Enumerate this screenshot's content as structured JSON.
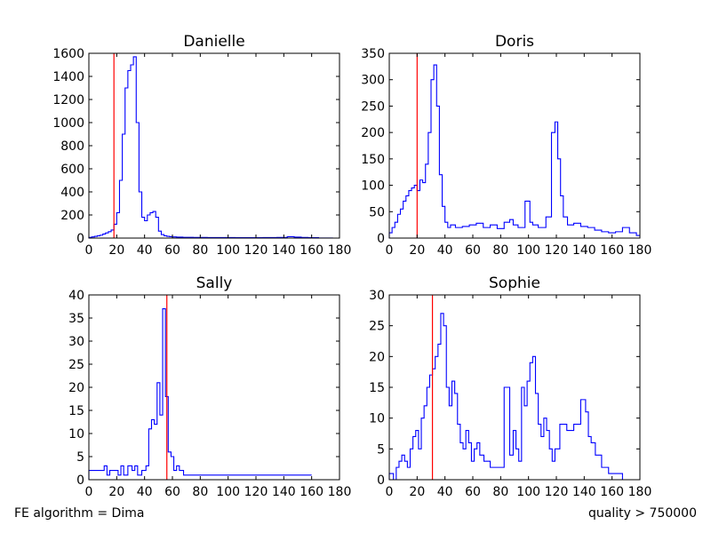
{
  "footer": {
    "left": "FE algorithm = Dima",
    "right": "quality > 750000"
  },
  "colors": {
    "series": "#0000ff",
    "marker": "#ff0000",
    "axes": "#000000"
  },
  "chart_data": [
    {
      "type": "histogram",
      "title": "Danielle",
      "xlim": [
        0,
        180
      ],
      "ylim": [
        0,
        1600
      ],
      "xticks": [
        0,
        20,
        40,
        60,
        80,
        100,
        120,
        140,
        160,
        180
      ],
      "yticks": [
        0,
        200,
        400,
        600,
        800,
        1000,
        1200,
        1400,
        1600
      ],
      "marker_line_x": 18,
      "series": [
        {
          "x": [
            1,
            3,
            5,
            7,
            9,
            11,
            13,
            15,
            17,
            19,
            21,
            23,
            25,
            27,
            29,
            31,
            33,
            35,
            37,
            39,
            41,
            43,
            45,
            47,
            49,
            51,
            53,
            55,
            57,
            59,
            61,
            65,
            70,
            80,
            90,
            100,
            110,
            120,
            130,
            140,
            145,
            150,
            155,
            160,
            170,
            180
          ],
          "y": [
            5,
            10,
            15,
            20,
            25,
            35,
            45,
            55,
            70,
            120,
            220,
            500,
            900,
            1300,
            1450,
            1500,
            1570,
            1000,
            400,
            180,
            150,
            200,
            220,
            230,
            180,
            60,
            30,
            20,
            15,
            12,
            10,
            8,
            6,
            5,
            4,
            4,
            3,
            3,
            4,
            5,
            12,
            8,
            5,
            3,
            1,
            0
          ]
        }
      ]
    },
    {
      "type": "histogram",
      "title": "Doris",
      "xlim": [
        0,
        180
      ],
      "ylim": [
        0,
        350
      ],
      "xticks": [
        0,
        20,
        40,
        60,
        80,
        100,
        120,
        140,
        160,
        180
      ],
      "yticks": [
        0,
        50,
        100,
        150,
        200,
        250,
        300,
        350
      ],
      "marker_line_x": 20,
      "series": [
        {
          "x": [
            1,
            3,
            5,
            7,
            9,
            11,
            13,
            15,
            17,
            19,
            21,
            23,
            25,
            27,
            29,
            31,
            33,
            35,
            37,
            39,
            41,
            43,
            45,
            50,
            55,
            60,
            65,
            70,
            75,
            80,
            85,
            88,
            90,
            95,
            100,
            102,
            104,
            110,
            115,
            118,
            120,
            122,
            124,
            126,
            130,
            135,
            140,
            145,
            150,
            155,
            160,
            165,
            170,
            175,
            180
          ],
          "y": [
            10,
            20,
            30,
            45,
            55,
            70,
            80,
            90,
            95,
            100,
            90,
            110,
            105,
            140,
            200,
            300,
            328,
            250,
            120,
            60,
            30,
            20,
            25,
            20,
            22,
            25,
            28,
            20,
            25,
            18,
            30,
            35,
            25,
            20,
            70,
            30,
            25,
            20,
            40,
            200,
            220,
            150,
            80,
            40,
            25,
            28,
            22,
            20,
            15,
            12,
            10,
            12,
            20,
            10,
            5
          ]
        }
      ]
    },
    {
      "type": "histogram",
      "title": "Sally",
      "xlim": [
        0,
        180
      ],
      "ylim": [
        0,
        40
      ],
      "xticks": [
        0,
        20,
        40,
        60,
        80,
        100,
        120,
        140,
        160,
        180
      ],
      "yticks": [
        0,
        5,
        10,
        15,
        20,
        25,
        30,
        35,
        40
      ],
      "marker_line_x": 56,
      "series": [
        {
          "x": [
            10,
            12,
            14,
            16,
            20,
            22,
            24,
            26,
            30,
            32,
            34,
            36,
            40,
            42,
            44,
            46,
            48,
            50,
            52,
            54,
            56,
            58,
            60,
            62,
            64,
            66,
            70,
            72,
            80,
            90,
            108,
            150,
            155,
            160
          ],
          "y": [
            2,
            3,
            1,
            2,
            2,
            1,
            3,
            1,
            3,
            2,
            3,
            1,
            2,
            3,
            11,
            13,
            12,
            21,
            14,
            37,
            18,
            6,
            5,
            2,
            3,
            2,
            1,
            1,
            1,
            1,
            1,
            1,
            1,
            1
          ]
        }
      ]
    },
    {
      "type": "histogram",
      "title": "Sophie",
      "xlim": [
        0,
        180
      ],
      "ylim": [
        0,
        30
      ],
      "xticks": [
        0,
        20,
        40,
        60,
        80,
        100,
        120,
        140,
        160,
        180
      ],
      "yticks": [
        0,
        5,
        10,
        15,
        20,
        25,
        30
      ],
      "marker_line_x": 31,
      "series": [
        {
          "x": [
            2,
            4,
            6,
            8,
            10,
            12,
            14,
            16,
            18,
            20,
            22,
            24,
            26,
            28,
            30,
            32,
            34,
            36,
            38,
            40,
            42,
            44,
            46,
            48,
            50,
            52,
            54,
            56,
            58,
            60,
            62,
            64,
            66,
            70,
            75,
            80,
            85,
            88,
            90,
            92,
            94,
            96,
            98,
            100,
            102,
            104,
            106,
            108,
            110,
            112,
            114,
            116,
            118,
            120,
            125,
            130,
            135,
            140,
            142,
            144,
            146,
            150,
            155,
            160,
            165,
            170
          ],
          "y": [
            1,
            0,
            2,
            3,
            4,
            3,
            2,
            5,
            7,
            8,
            5,
            10,
            12,
            15,
            17,
            18,
            20,
            22,
            27,
            25,
            15,
            12,
            16,
            14,
            9,
            6,
            5,
            8,
            6,
            3,
            5,
            6,
            4,
            3,
            2,
            2,
            15,
            4,
            8,
            5,
            3,
            15,
            12,
            16,
            19,
            20,
            14,
            9,
            7,
            10,
            8,
            5,
            3,
            5,
            9,
            8,
            9,
            13,
            11,
            7,
            6,
            4,
            2,
            1,
            1,
            0
          ]
        }
      ]
    }
  ]
}
